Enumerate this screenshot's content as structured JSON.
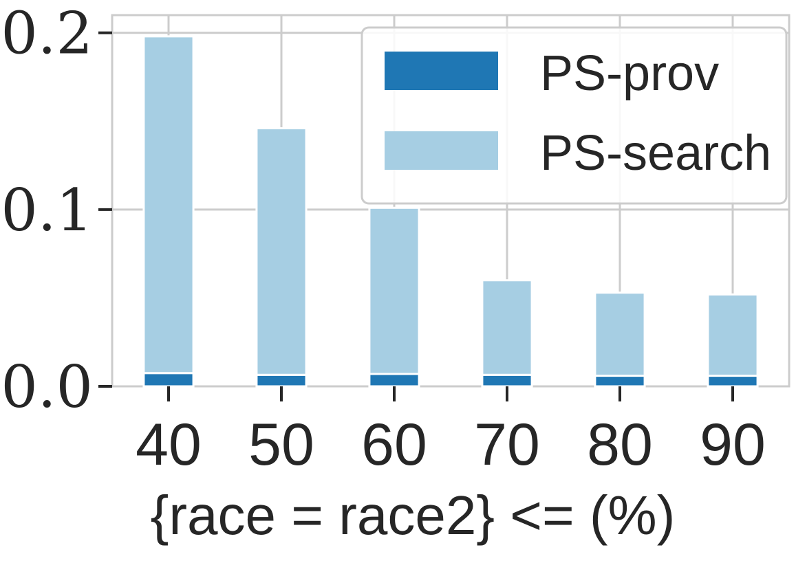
{
  "chart_data": {
    "type": "bar",
    "stacked": true,
    "categories": [
      "40",
      "50",
      "60",
      "70",
      "80",
      "90"
    ],
    "series": [
      {
        "name": "PS-prov",
        "color": "#1f77b4",
        "values": [
          0.0075,
          0.0065,
          0.007,
          0.0065,
          0.006,
          0.006
        ]
      },
      {
        "name": "PS-search",
        "color": "#a6cee3",
        "values": [
          0.1905,
          0.1395,
          0.094,
          0.0535,
          0.047,
          0.046
        ]
      }
    ],
    "yticks": [
      "0.0",
      "0.1",
      "0.2"
    ],
    "ylim": [
      0,
      0.21
    ],
    "xlabel": "{race = race2} <= (%)",
    "ylabel": "",
    "grid": true,
    "legend_position": "top-right"
  }
}
